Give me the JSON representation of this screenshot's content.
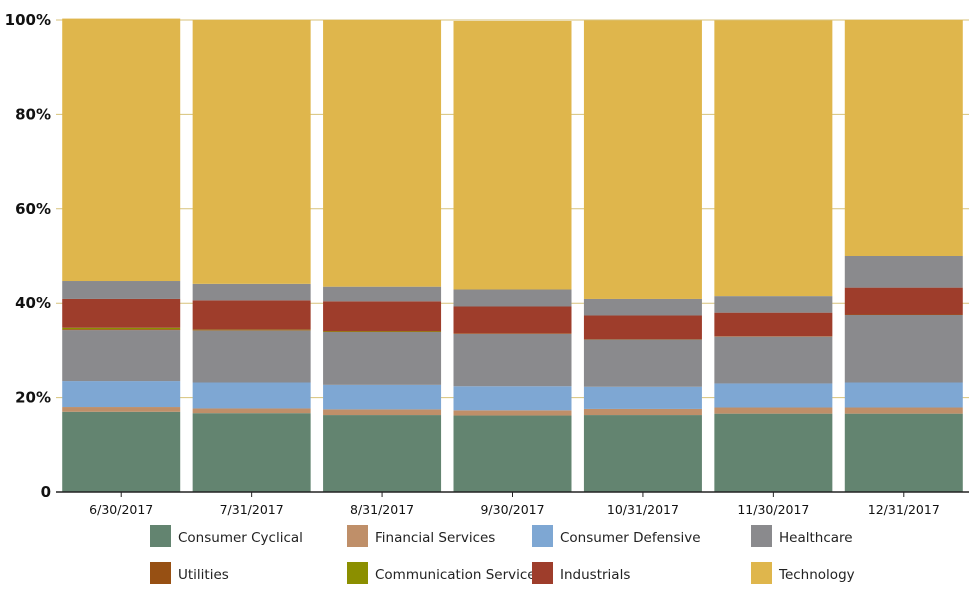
{
  "chart_data": {
    "type": "bar",
    "stacked": true,
    "normalized_percent": true,
    "categories": [
      "6/30/2017",
      "7/31/2017",
      "8/31/2017",
      "9/30/2017",
      "10/31/2017",
      "11/30/2017",
      "12/31/2017"
    ],
    "y_ticks": [
      "0",
      "20%",
      "40%",
      "60%",
      "80%",
      "100%"
    ],
    "ylim": [
      0,
      100
    ],
    "grid": true,
    "legend_position": "bottom",
    "series": [
      {
        "name": "Consumer Cyclical",
        "color": "#638470",
        "values": [
          17.0,
          16.7,
          16.3,
          16.2,
          16.3,
          16.6,
          16.6
        ]
      },
      {
        "name": "Financial Services",
        "color": "#bf8f69",
        "values": [
          1.0,
          1.0,
          1.2,
          1.1,
          1.3,
          1.3,
          1.3
        ]
      },
      {
        "name": "Consumer Defensive",
        "color": "#7ea7d3",
        "values": [
          5.5,
          5.5,
          5.2,
          5.1,
          4.7,
          5.1,
          5.3
        ]
      },
      {
        "name": "Healthcare",
        "color": "#8a8a8d",
        "values": [
          10.8,
          11.0,
          11.2,
          11.1,
          10.0,
          9.9,
          14.3
        ]
      },
      {
        "name": "Utilities",
        "color": "#975013",
        "values": [
          0.2,
          0.1,
          0.1,
          0.1,
          0.1,
          0.1,
          0.1
        ]
      },
      {
        "name": "Communication Services",
        "color": "#8b8f00",
        "values": [
          0.3,
          0.1,
          0.1,
          0.0,
          0.0,
          0.0,
          0.0
        ]
      },
      {
        "name": "Industrials",
        "color": "#9e3d2b",
        "values": [
          6.1,
          6.2,
          6.3,
          5.7,
          5.0,
          5.0,
          5.7
        ]
      },
      {
        "name": "Healthcare",
        "color": "#8a8a8d",
        "values": [
          3.8,
          3.5,
          3.1,
          3.6,
          3.5,
          3.5,
          6.7
        ]
      },
      {
        "name": "Technology",
        "color": "#dfb64c",
        "values": [
          55.6,
          55.9,
          56.5,
          56.9,
          59.0,
          58.4,
          50.0
        ]
      }
    ],
    "legend": [
      {
        "label": "Consumer Cyclical",
        "color": "#638470"
      },
      {
        "label": "Financial Services",
        "color": "#bf8f69"
      },
      {
        "label": "Consumer Defensive",
        "color": "#7ea7d3"
      },
      {
        "label": "Healthcare",
        "color": "#8a8a8d"
      },
      {
        "label": "Utilities",
        "color": "#975013"
      },
      {
        "label": "Communication Services",
        "color": "#8b8f00"
      },
      {
        "label": "Industrials",
        "color": "#9e3d2b"
      },
      {
        "label": "Technology",
        "color": "#dfb64c"
      }
    ]
  }
}
